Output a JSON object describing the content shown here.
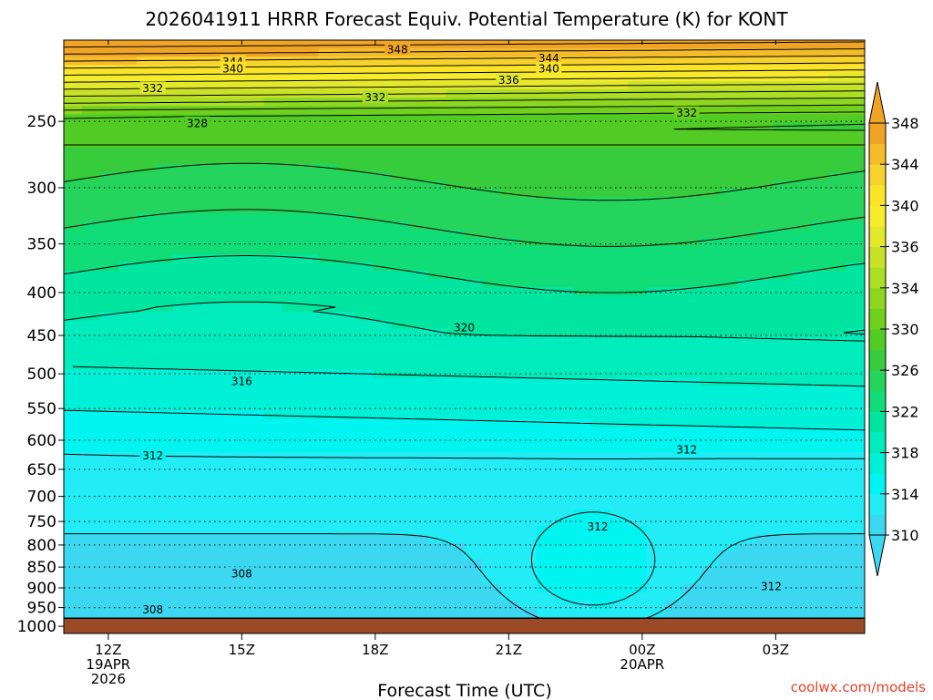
{
  "chart_data": {
    "type": "heatmap",
    "title": "2026041911 HRRR Forecast Equiv. Potential Temperature (K) for KONT",
    "xlabel": "Forecast Time (UTC)",
    "ylabel": "",
    "credit": "coolwx.com/models",
    "x_ticks": [
      {
        "hour": 12,
        "lines": [
          "12Z",
          "19APR",
          "2026"
        ]
      },
      {
        "hour": 15,
        "lines": [
          "15Z"
        ]
      },
      {
        "hour": 18,
        "lines": [
          "18Z"
        ]
      },
      {
        "hour": 21,
        "lines": [
          "21Z"
        ]
      },
      {
        "hour": 24,
        "lines": [
          "00Z",
          "20APR"
        ]
      },
      {
        "hour": 27,
        "lines": [
          "03Z"
        ]
      }
    ],
    "xlim_hours": [
      11,
      29
    ],
    "y_ticks_hpa": [
      250,
      300,
      350,
      400,
      450,
      500,
      550,
      600,
      650,
      700,
      750,
      800,
      850,
      900,
      950,
      1000
    ],
    "ylim_hpa": [
      1020,
      200
    ],
    "y_scale": "log",
    "surface_pressure_hpa": 978,
    "grid": "dotted",
    "colorbar": {
      "labels": [
        "310",
        "314",
        "318",
        "322",
        "326",
        "330",
        "334",
        "336",
        "340",
        "344",
        "348"
      ],
      "levels": [
        310,
        312,
        314,
        316,
        318,
        320,
        322,
        324,
        326,
        328,
        330,
        332,
        334,
        336,
        338,
        340,
        342,
        344,
        346,
        348
      ],
      "colors": [
        "#3cd8f2",
        "#22ecf5",
        "#00f4f0",
        "#00f0d8",
        "#00ecbc",
        "#00e6a0",
        "#10dc78",
        "#24d45c",
        "#36cc3c",
        "#52cc24",
        "#70d01c",
        "#8ed620",
        "#acde24",
        "#c8e228",
        "#e2e82c",
        "#f6ec2c",
        "#fae428",
        "#f8d22c",
        "#f4bc2a",
        "#f0a426"
      ],
      "arrow_low_color": "#3cd8f2",
      "arrow_high_color": "#f0a426"
    },
    "ground_color": "#9a4a26",
    "contour_interval_K": 2,
    "contour_labels": [
      {
        "text": "348",
        "hour": 18.5,
        "hpa": 205
      },
      {
        "text": "344",
        "hour": 14.8,
        "hpa": 212
      },
      {
        "text": "340",
        "hour": 14.8,
        "hpa": 216
      },
      {
        "text": "344",
        "hour": 21.9,
        "hpa": 210
      },
      {
        "text": "340",
        "hour": 21.9,
        "hpa": 216
      },
      {
        "text": "336",
        "hour": 21.0,
        "hpa": 223
      },
      {
        "text": "332",
        "hour": 13.0,
        "hpa": 228
      },
      {
        "text": "332",
        "hour": 18.0,
        "hpa": 234
      },
      {
        "text": "332",
        "hour": 25.0,
        "hpa": 244
      },
      {
        "text": "328",
        "hour": 14.0,
        "hpa": 251
      },
      {
        "text": "320",
        "hour": 20.0,
        "hpa": 440
      },
      {
        "text": "316",
        "hour": 15.0,
        "hpa": 510
      },
      {
        "text": "312",
        "hour": 13.0,
        "hpa": 625
      },
      {
        "text": "312",
        "hour": 25.0,
        "hpa": 615
      },
      {
        "text": "312",
        "hour": 23.0,
        "hpa": 760
      },
      {
        "text": "308",
        "hour": 15.0,
        "hpa": 865
      },
      {
        "text": "308",
        "hour": 13.0,
        "hpa": 955
      },
      {
        "text": "312",
        "hour": 26.9,
        "hpa": 895
      }
    ]
  }
}
